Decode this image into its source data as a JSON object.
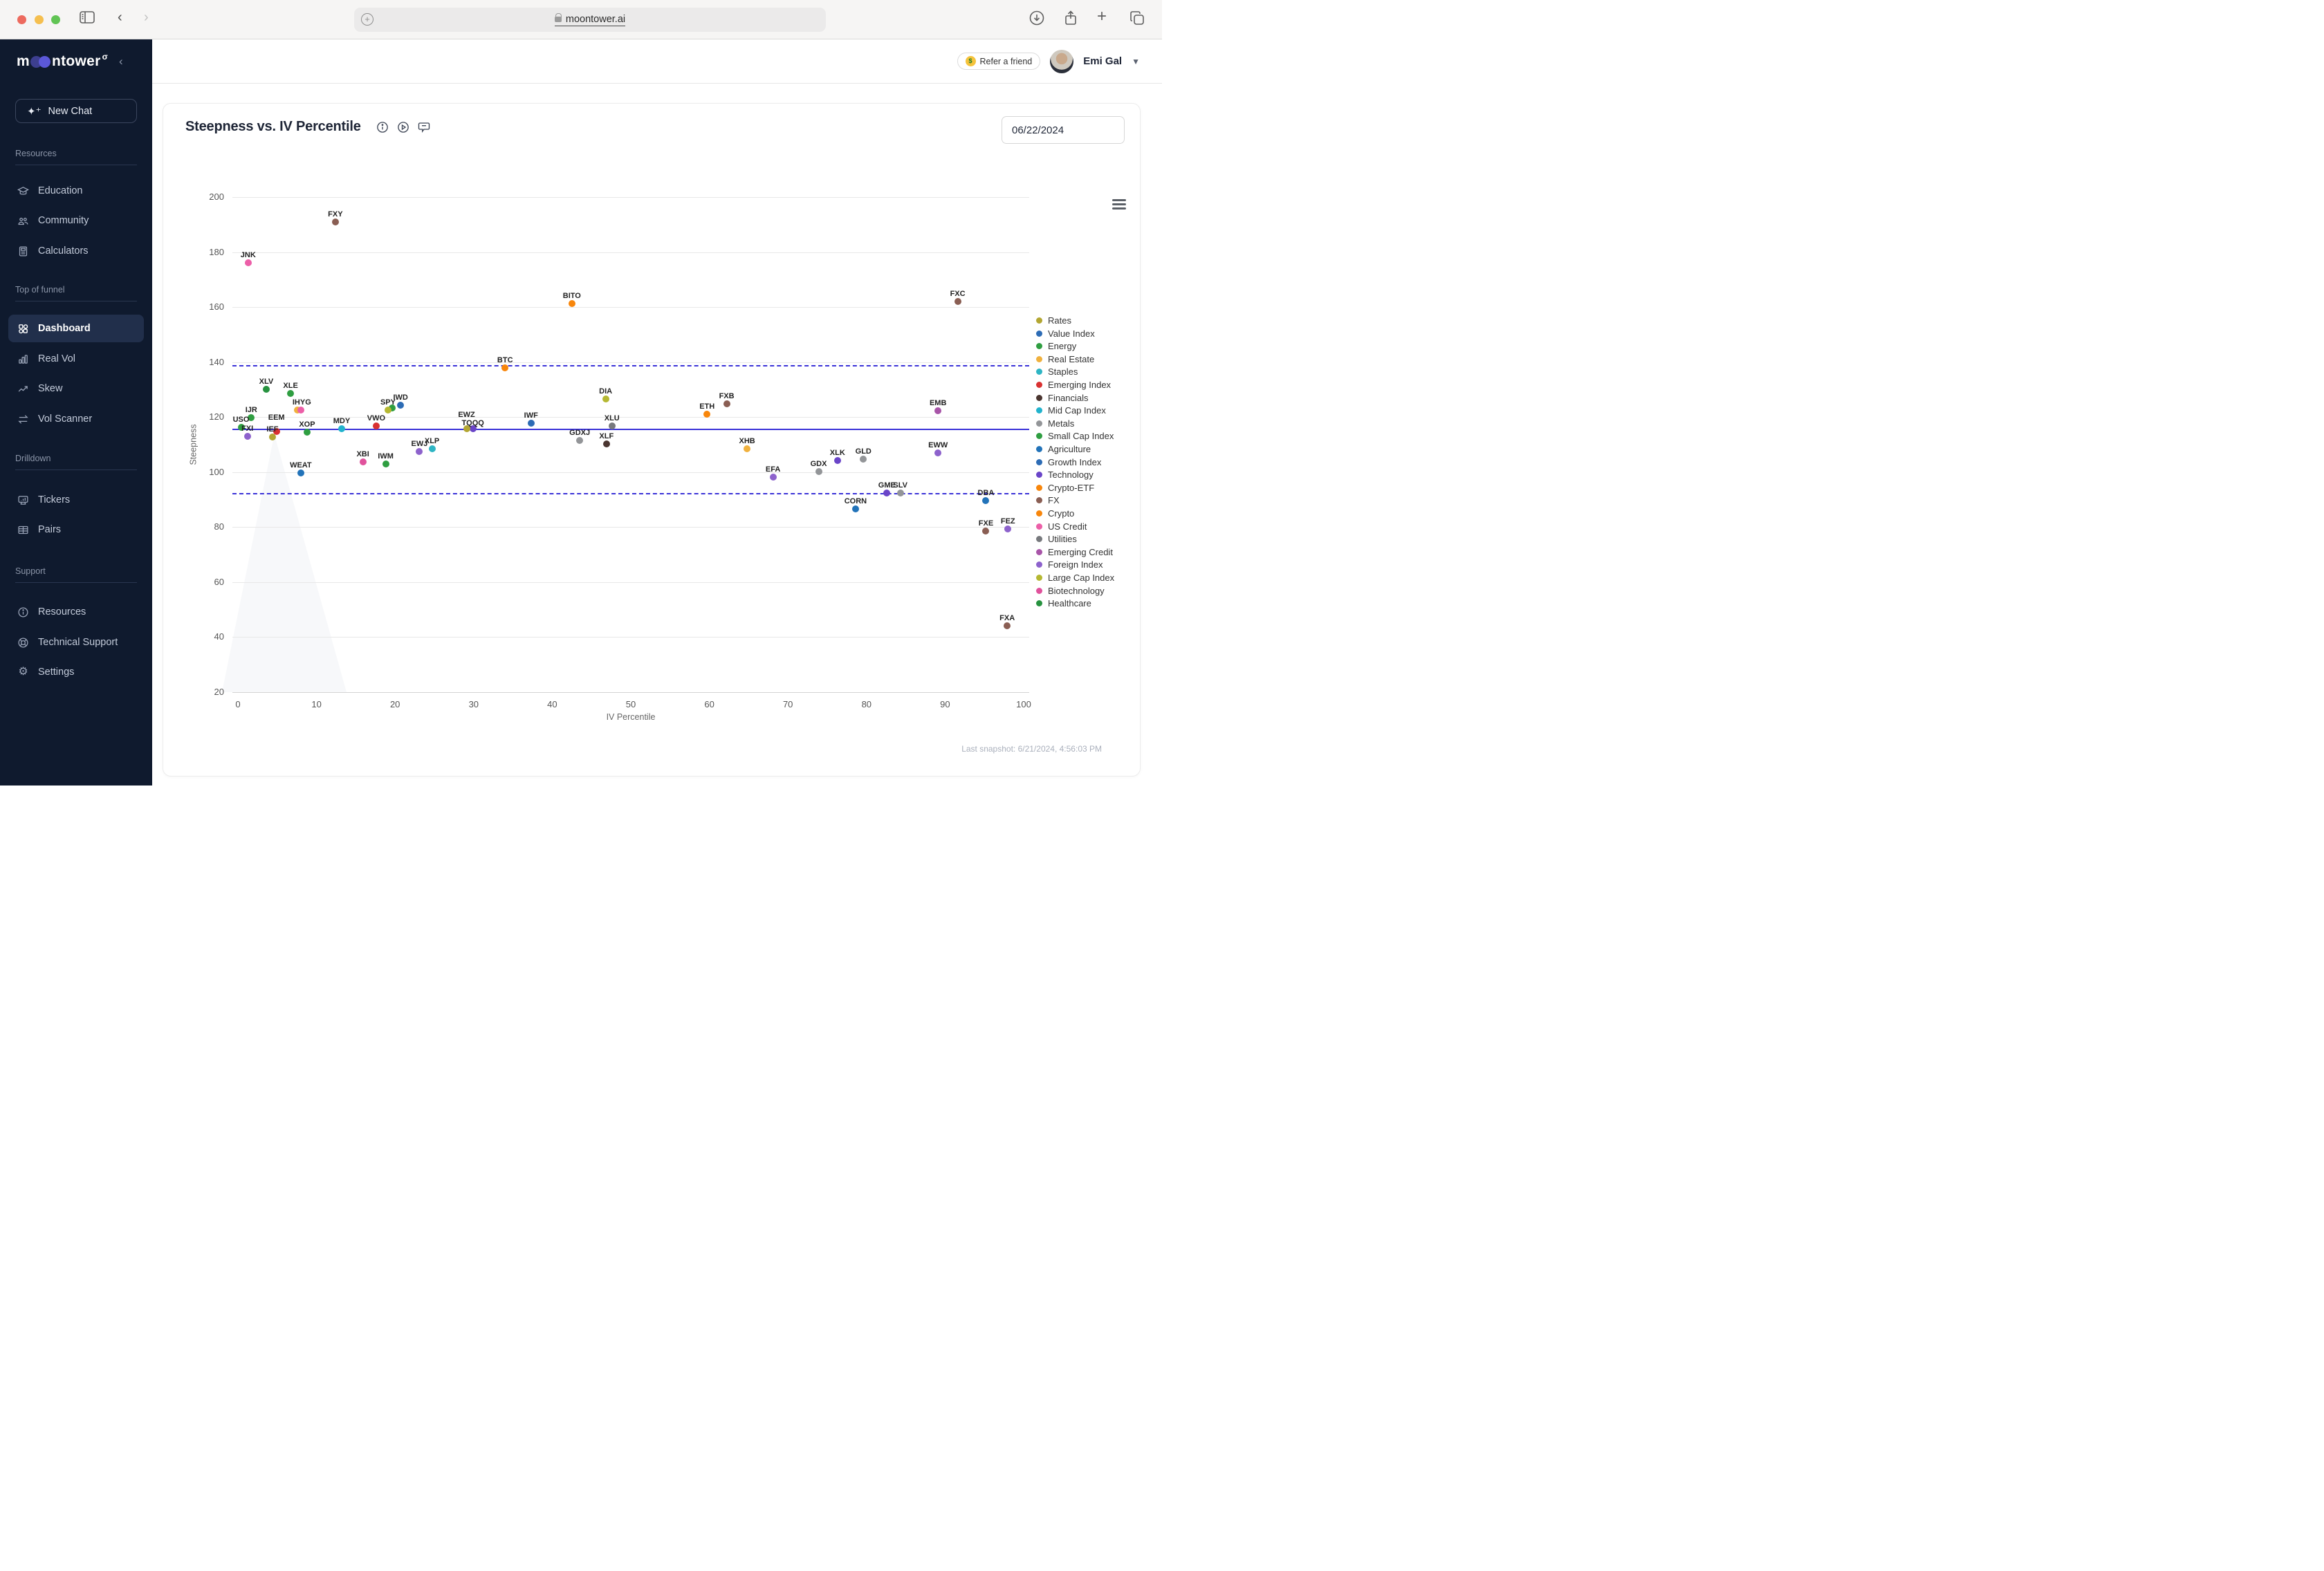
{
  "browser": {
    "url": "moontower.ai"
  },
  "sidebar": {
    "logo_prefix": "m",
    "logo_suffix": "ntower",
    "logo_sigma": "σ",
    "new_chat": "New Chat",
    "sections": {
      "resources": {
        "header": "Resources",
        "items": {
          "education": "Education",
          "community": "Community",
          "calculators": "Calculators"
        }
      },
      "top_of_funnel": {
        "header": "Top of funnel",
        "items": {
          "dashboard": "Dashboard",
          "real_vol": "Real Vol",
          "skew": "Skew",
          "vol_scanner": "Vol Scanner"
        }
      },
      "drilldown": {
        "header": "Drilldown",
        "items": {
          "tickers": "Tickers",
          "pairs": "Pairs"
        }
      },
      "support": {
        "header": "Support",
        "items": {
          "resources": "Resources",
          "technical_support": "Technical Support",
          "settings": "Settings"
        }
      }
    }
  },
  "header": {
    "refer_label": "Refer a friend",
    "refer_emoji": "$",
    "user_name": "Emi Gal"
  },
  "panel": {
    "title": "Steepness vs. IV Percentile",
    "date_value": "06/22/2024",
    "last_snapshot": "Last snapshot: 6/21/2024, 4:56:03 PM"
  },
  "chart_data": {
    "type": "scatter",
    "title": "Steepness vs. IV Percentile",
    "xlabel": "IV Percentile",
    "ylabel": "Steepness",
    "xlim": [
      0,
      100
    ],
    "ylim": [
      20,
      200
    ],
    "x_ticks": [
      0,
      10,
      20,
      30,
      40,
      50,
      60,
      70,
      80,
      90,
      100
    ],
    "y_ticks": [
      20,
      40,
      60,
      80,
      100,
      120,
      140,
      160,
      180,
      200
    ],
    "grid": true,
    "legend_position": "right",
    "ref_lines": {
      "solid": 115.7,
      "dashed_upper": 139.0,
      "dashed_lower": 92.3,
      "color": "#3a31d8"
    },
    "legend": [
      {
        "label": "Rates",
        "color": "#b3a632"
      },
      {
        "label": "Value Index",
        "color": "#2d6cb5"
      },
      {
        "label": "Energy",
        "color": "#2f9e41"
      },
      {
        "label": "Real Estate",
        "color": "#f0b13e"
      },
      {
        "label": "Staples",
        "color": "#2eb5c4"
      },
      {
        "label": "Emerging Index",
        "color": "#d93131"
      },
      {
        "label": "Financials",
        "color": "#4a3530"
      },
      {
        "label": "Mid Cap Index",
        "color": "#22b3cd"
      },
      {
        "label": "Metals",
        "color": "#939598"
      },
      {
        "label": "Small Cap Index",
        "color": "#2f9e41"
      },
      {
        "label": "Agriculture",
        "color": "#2273b9"
      },
      {
        "label": "Growth Index",
        "color": "#2d6cb5"
      },
      {
        "label": "Technology",
        "color": "#6a45c8"
      },
      {
        "label": "Crypto-ETF",
        "color": "#f8860b"
      },
      {
        "label": "FX",
        "color": "#8a5e53"
      },
      {
        "label": "Crypto",
        "color": "#f8860b"
      },
      {
        "label": "US Credit",
        "color": "#ec5fa8"
      },
      {
        "label": "Utilities",
        "color": "#77797d"
      },
      {
        "label": "Emerging Credit",
        "color": "#a855a8"
      },
      {
        "label": "Foreign Index",
        "color": "#8d62cc"
      },
      {
        "label": "Large Cap Index",
        "color": "#b5b832"
      },
      {
        "label": "Biotechnology",
        "color": "#e0529c"
      },
      {
        "label": "Healthcare",
        "color": "#27923f"
      }
    ],
    "points": [
      {
        "t": "FXY",
        "x": 12.4,
        "y": 191.0,
        "c": "#8a5e53"
      },
      {
        "t": "JNK",
        "x": 1.3,
        "y": 176.0,
        "c": "#ec5fa8"
      },
      {
        "t": "FXC",
        "x": 91.6,
        "y": 162.0,
        "c": "#8a5e53"
      },
      {
        "t": "BITO",
        "x": 42.5,
        "y": 161.3,
        "c": "#f8860b"
      },
      {
        "t": "BTC",
        "x": 34.0,
        "y": 137.9,
        "c": "#f8860b"
      },
      {
        "t": "XLV",
        "x": 3.6,
        "y": 130.0,
        "c": "#27923f"
      },
      {
        "t": "XLE",
        "x": 6.7,
        "y": 128.5,
        "c": "#2f9e41"
      },
      {
        "t": "DIA",
        "x": 46.8,
        "y": 126.6,
        "c": "#b5b832"
      },
      {
        "t": "FXB",
        "x": 62.2,
        "y": 124.8,
        "c": "#8a5e53"
      },
      {
        "t": "IWD",
        "x": 20.7,
        "y": 124.3,
        "c": "#2d6cb5"
      },
      {
        "t": "",
        "x": 19.6,
        "y": 123.4,
        "c": "#2f9e41"
      },
      {
        "t": "SPY",
        "x": 19.1,
        "y": 122.6,
        "c": "#b5b832"
      },
      {
        "t": "IHYG",
        "x": 7.6,
        "y": 122.6,
        "c": "#f0b13e",
        "lx": 6
      },
      {
        "t": "",
        "x": 8.0,
        "y": 122.6,
        "c": "#ec5fa8"
      },
      {
        "t": "EMB",
        "x": 89.1,
        "y": 122.4,
        "c": "#a855a8"
      },
      {
        "t": "ETH",
        "x": 59.7,
        "y": 121.0,
        "c": "#f8860b"
      },
      {
        "t": "IJR",
        "x": 1.7,
        "y": 119.7,
        "c": "#2f9e41"
      },
      {
        "t": "IWF",
        "x": 37.3,
        "y": 117.8,
        "c": "#2d6cb5"
      },
      {
        "t": "VWO",
        "x": 17.6,
        "y": 116.8,
        "c": "#d93131"
      },
      {
        "t": "XLU",
        "x": 47.6,
        "y": 116.7,
        "c": "#77797d"
      },
      {
        "t": "USO",
        "x": 0.4,
        "y": 116.2,
        "c": "#2f9e41"
      },
      {
        "t": "TQQQ",
        "x": 29.9,
        "y": 115.9,
        "c": "#6a45c8",
        "ly": -14
      },
      {
        "t": "MDY",
        "x": 13.2,
        "y": 115.9,
        "c": "#22b3cd"
      },
      {
        "t": "EWZ",
        "x": 29.1,
        "y": 115.8,
        "c": "#b3a632",
        "ly": -26
      },
      {
        "t": "EEM",
        "x": 4.9,
        "y": 114.8,
        "c": "#d93131",
        "ly": -26
      },
      {
        "t": "XOP",
        "x": 8.8,
        "y": 114.4,
        "c": "#2f9e41"
      },
      {
        "t": "FXI",
        "x": 1.2,
        "y": 113.1,
        "c": "#8d62cc"
      },
      {
        "t": "IEF",
        "x": 4.4,
        "y": 112.7,
        "c": "#b3a632"
      },
      {
        "t": "GDXJ",
        "x": 43.5,
        "y": 111.5,
        "c": "#939598"
      },
      {
        "t": "XLF",
        "x": 46.9,
        "y": 110.3,
        "c": "#4a3530"
      },
      {
        "t": "XLP",
        "x": 24.7,
        "y": 108.6,
        "c": "#2eb5c4"
      },
      {
        "t": "XHB",
        "x": 64.8,
        "y": 108.4,
        "c": "#f0b13e"
      },
      {
        "t": "EWJ",
        "x": 23.1,
        "y": 107.5,
        "c": "#8d62cc"
      },
      {
        "t": "EWW",
        "x": 89.1,
        "y": 106.9,
        "c": "#8d62cc"
      },
      {
        "t": "GLD",
        "x": 79.6,
        "y": 104.7,
        "c": "#939598"
      },
      {
        "t": "XLK",
        "x": 76.3,
        "y": 104.3,
        "c": "#6a45c8"
      },
      {
        "t": "XBI",
        "x": 15.9,
        "y": 103.8,
        "c": "#e0529c"
      },
      {
        "t": "IWM",
        "x": 18.8,
        "y": 103.0,
        "c": "#2f9e41"
      },
      {
        "t": "GDX",
        "x": 73.9,
        "y": 100.1,
        "c": "#939598"
      },
      {
        "t": "WEAT",
        "x": 8.0,
        "y": 99.7,
        "c": "#2273b9"
      },
      {
        "t": "EFA",
        "x": 68.1,
        "y": 98.2,
        "c": "#8d62cc"
      },
      {
        "t": "GME",
        "x": 82.6,
        "y": 92.5,
        "c": "#6a45c8"
      },
      {
        "t": "SLV",
        "x": 84.3,
        "y": 92.5,
        "c": "#939598"
      },
      {
        "t": "DBA",
        "x": 95.2,
        "y": 89.6,
        "c": "#2273b9"
      },
      {
        "t": "CORN",
        "x": 78.6,
        "y": 86.7,
        "c": "#2273b9"
      },
      {
        "t": "FXE",
        "x": 95.2,
        "y": 78.5,
        "c": "#8a5e53"
      },
      {
        "t": "FEZ",
        "x": 98.0,
        "y": 79.4,
        "c": "#8d62cc"
      },
      {
        "t": "FXA",
        "x": 97.9,
        "y": 44.2,
        "c": "#8a5e53"
      }
    ]
  }
}
